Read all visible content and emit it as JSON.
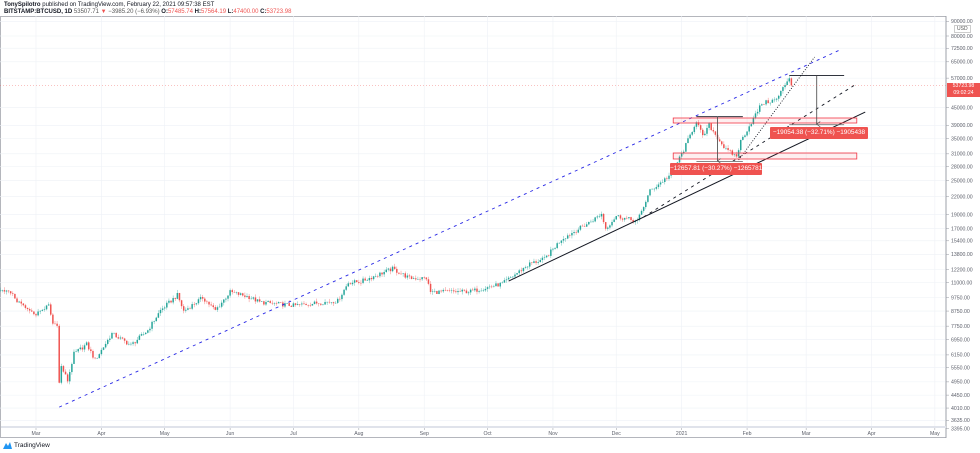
{
  "header": {
    "author": "TonySpilotro",
    "published_text": "published on TradingView.com, February 22, 2021 09:57:38 EST",
    "symbol": "BITSTAMP:BTCUSD, 1D",
    "last": "53507.71",
    "change_arrow": "▼",
    "change": "−3985.20 (−6.93%)",
    "o_label": "O:",
    "o": "57485.74",
    "h_label": "H:",
    "h": "57564.19",
    "l_label": "L:",
    "l": "47400.00",
    "c_label": "C:",
    "c": "53723.98"
  },
  "price_axis": {
    "currency": "USD",
    "current_price": "53723.98",
    "countdown": "09:02:24"
  },
  "measurements": {
    "upper": "−19054.38 (−32.71%) −1905438",
    "lower": "−12657.81 (−30.27%) −1265781"
  },
  "branding": {
    "logo_text": "TradingView"
  },
  "colors": {
    "up": "#26a69a",
    "down": "#ef5350",
    "channel": "#2929e6",
    "trendline": "#131722",
    "zone": "#f23645",
    "grid": "#eef1f6"
  },
  "chart_data": {
    "type": "candlestick",
    "scale": "log",
    "grid": true,
    "ylim": [
      3300,
      95000
    ],
    "xlim": [
      "2020-02-13",
      "2021-05-20"
    ],
    "y_ticks": [
      "90000.00",
      "80000.00",
      "72500.00",
      "65000.00",
      "57000.00",
      "45000.00",
      "39000.00",
      "35000.00",
      "31000.00",
      "28000.00",
      "25000.00",
      "22000.00",
      "19000.00",
      "17000.00",
      "15400.00",
      "13800.00",
      "12200.00",
      "11000.00",
      "9750.00",
      "8750.00",
      "7750.00",
      "6950.00",
      "6150.00",
      "5550.00",
      "4950.00",
      "4450.00",
      "4010.00",
      "3635.00",
      "3395.00"
    ],
    "x_ticks": [
      {
        "label": "Mar",
        "date": "2020-03-01"
      },
      {
        "label": "Apr",
        "date": "2020-04-01"
      },
      {
        "label": "May",
        "date": "2020-05-01"
      },
      {
        "label": "Jun",
        "date": "2020-06-01"
      },
      {
        "label": "Jul",
        "date": "2020-07-01"
      },
      {
        "label": "Aug",
        "date": "2020-08-01"
      },
      {
        "label": "Sep",
        "date": "2020-09-01"
      },
      {
        "label": "Oct",
        "date": "2020-10-01"
      },
      {
        "label": "Nov",
        "date": "2020-11-01"
      },
      {
        "label": "Dec",
        "date": "2020-12-01"
      },
      {
        "label": "2021",
        "date": "2021-01-01"
      },
      {
        "label": "Feb",
        "date": "2021-02-01"
      },
      {
        "label": "Mar",
        "date": "2021-03-01"
      },
      {
        "label": "Apr",
        "date": "2021-04-01"
      },
      {
        "label": "May",
        "date": "2021-05-01"
      }
    ],
    "approx_close": [
      [
        "2020-02-13",
        10300
      ],
      [
        "2020-02-19",
        10150
      ],
      [
        "2020-02-20",
        9600
      ],
      [
        "2020-02-26",
        8800
      ],
      [
        "2020-03-01",
        8550
      ],
      [
        "2020-03-07",
        9150
      ],
      [
        "2020-03-09",
        7900
      ],
      [
        "2020-03-11",
        7900
      ],
      [
        "2020-03-12",
        4900
      ],
      [
        "2020-03-13",
        5600
      ],
      [
        "2020-03-16",
        5000
      ],
      [
        "2020-03-19",
        6200
      ],
      [
        "2020-03-25",
        6700
      ],
      [
        "2020-03-29",
        5900
      ],
      [
        "2020-04-06",
        7300
      ],
      [
        "2020-04-15",
        6650
      ],
      [
        "2020-04-23",
        7500
      ],
      [
        "2020-04-29",
        8800
      ],
      [
        "2020-05-07",
        9950
      ],
      [
        "2020-05-10",
        8750
      ],
      [
        "2020-05-19",
        9750
      ],
      [
        "2020-05-25",
        8800
      ],
      [
        "2020-06-01",
        10200
      ],
      [
        "2020-06-10",
        9800
      ],
      [
        "2020-06-15",
        9400
      ],
      [
        "2020-07-01",
        9150
      ],
      [
        "2020-07-22",
        9500
      ],
      [
        "2020-07-27",
        11000
      ],
      [
        "2020-08-02",
        11100
      ],
      [
        "2020-08-17",
        12300
      ],
      [
        "2020-08-25",
        11400
      ],
      [
        "2020-09-02",
        11400
      ],
      [
        "2020-09-04",
        10200
      ],
      [
        "2020-09-23",
        10250
      ],
      [
        "2020-10-08",
        10900
      ],
      [
        "2020-10-21",
        12800
      ],
      [
        "2020-10-28",
        13300
      ],
      [
        "2020-11-05",
        15600
      ],
      [
        "2020-11-18",
        17800
      ],
      [
        "2020-11-24",
        19100
      ],
      [
        "2020-11-26",
        17000
      ],
      [
        "2020-12-01",
        18800
      ],
      [
        "2020-12-11",
        18000
      ],
      [
        "2020-12-17",
        23000
      ],
      [
        "2020-12-27",
        26300
      ],
      [
        "2021-01-02",
        32000
      ],
      [
        "2021-01-08",
        40500
      ],
      [
        "2021-01-11",
        35500
      ],
      [
        "2021-01-14",
        39000
      ],
      [
        "2021-01-22",
        32000
      ],
      [
        "2021-01-27",
        30400
      ],
      [
        "2021-01-29",
        34300
      ],
      [
        "2021-02-08",
        46500
      ],
      [
        "2021-02-15",
        48000
      ],
      [
        "2021-02-21",
        57500
      ],
      [
        "2021-02-22",
        53723.98
      ]
    ],
    "drawings": {
      "channel_line": {
        "style": "dashed",
        "color": "#2929e6",
        "from": [
          "2020-03-12",
          4040
        ],
        "to": [
          "2021-03-17",
          71500
        ]
      },
      "support_line": {
        "style": "solid",
        "color": "#131722",
        "from": [
          "2020-10-11",
          11140
        ],
        "to": [
          "2021-03-29",
          43400
        ]
      },
      "mid_line": {
        "style": "dashed",
        "color": "#131722",
        "from": [
          "2020-12-14",
          18660
        ],
        "to": [
          "2021-03-24",
          53900
        ]
      },
      "steep_line": {
        "style": "dotted",
        "color": "#131722",
        "from": [
          "2021-01-28",
          29500
        ],
        "to": [
          "2021-03-05",
          67550
        ]
      },
      "zone_upper": {
        "from": [
          "2020-12-28",
          41360
        ],
        "to": [
          "2021-03-25",
          39730
        ]
      },
      "zone_lower": {
        "from": [
          "2020-12-28",
          31210
        ],
        "to": [
          "2021-03-25",
          29740
        ]
      },
      "measure_upper": {
        "top": 58252,
        "bottom": 39198,
        "start": "2021-02-21",
        "end": "2021-03-19",
        "arrow": "2021-03-06"
      },
      "measure_lower": {
        "top": 41816,
        "bottom": 29158,
        "start": "2021-01-08",
        "end": "2021-01-30",
        "arrow": "2021-01-18"
      }
    }
  }
}
